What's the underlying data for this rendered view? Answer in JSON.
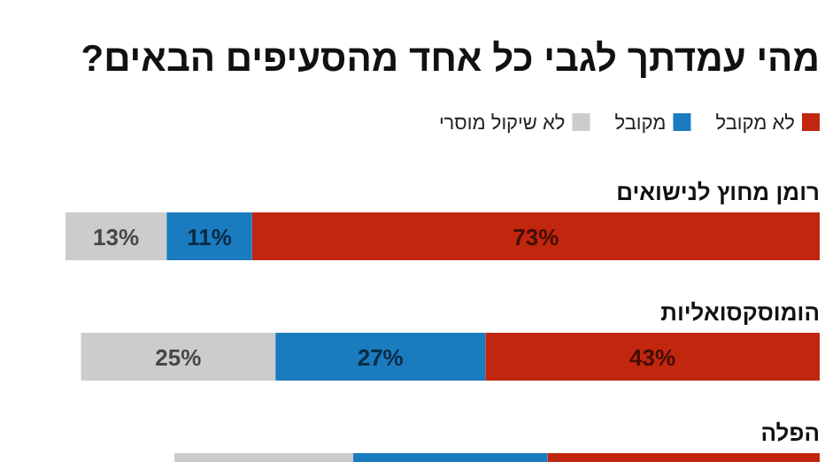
{
  "chart_data": {
    "type": "bar",
    "orientation": "horizontal",
    "stacked": true,
    "title": "מהי עמדתך לגבי כל אחד מהסעיפים הבאים?",
    "categories": [
      "רומן מחוץ לנישואים",
      "הומוסקסואליות",
      "הפלה"
    ],
    "legend": "top right",
    "series": [
      {
        "name": "לא מקובל",
        "color": "#c1260e",
        "values": [
          73,
          43,
          35
        ],
        "value_labels": [
          "73%",
          "43%",
          null
        ]
      },
      {
        "name": "מקובל",
        "color": "#1b7bbf",
        "values": [
          11,
          27,
          25
        ],
        "value_labels": [
          "11%",
          "27%",
          null
        ]
      },
      {
        "name": "לא שיקול מוסרי",
        "color": "#cccccc",
        "values": [
          13,
          25,
          23
        ],
        "value_labels": [
          "13%",
          "25%",
          null
        ]
      }
    ]
  }
}
